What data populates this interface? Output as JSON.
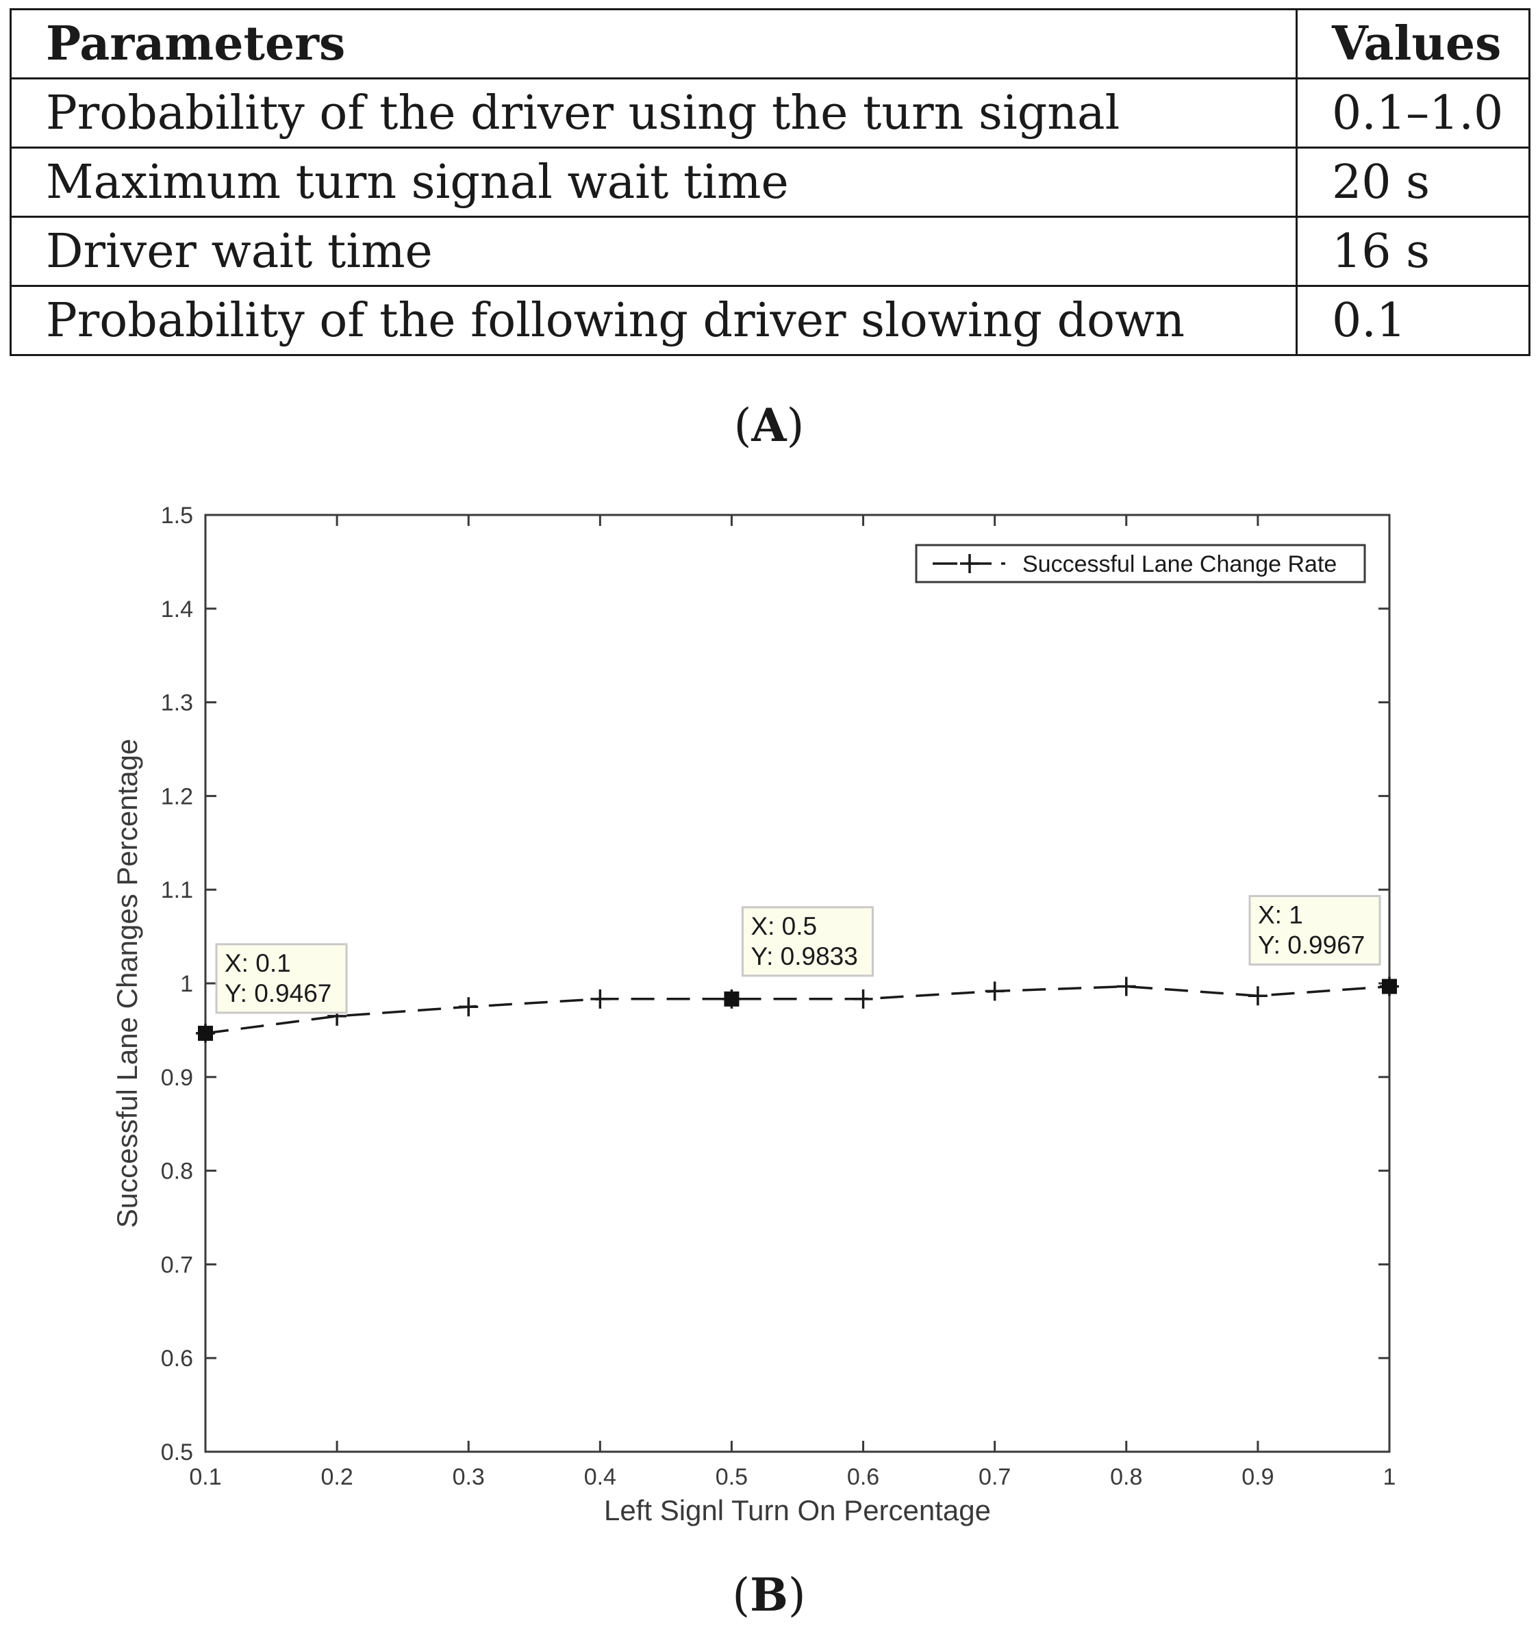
{
  "table": {
    "headers": [
      "Parameters",
      "Values"
    ],
    "rows": [
      [
        "Probability of the driver using the turn signal",
        "0.1–1.0"
      ],
      [
        "Maximum turn signal wait time",
        "20 s"
      ],
      [
        "Driver wait time",
        "16 s"
      ],
      [
        "Probability of the following driver slowing down",
        "0.1"
      ]
    ]
  },
  "panel_labels": {
    "a": {
      "open": "(",
      "letter": "A",
      "close": ")"
    },
    "b": {
      "open": "(",
      "letter": "B",
      "close": ")"
    }
  },
  "chart_data": {
    "type": "line",
    "xlabel": "Left Signl Turn On Percentage",
    "ylabel": "Successful Lane Changes Percentage",
    "xlim": [
      0.1,
      1.0
    ],
    "ylim": [
      0.5,
      1.5
    ],
    "xticks": [
      "0.1",
      "0.2",
      "0.3",
      "0.4",
      "0.5",
      "0.6",
      "0.7",
      "0.8",
      "0.9",
      "1"
    ],
    "yticks": [
      "0.5",
      "0.6",
      "0.7",
      "0.8",
      "0.9",
      "1",
      "1.1",
      "1.2",
      "1.3",
      "1.4",
      "1.5"
    ],
    "grid": false,
    "legend_position": "top-right",
    "series": [
      {
        "name": "Successful Lane Change Rate",
        "line_style": "dashed",
        "marker": "plus",
        "color": "#1a1a1a",
        "x": [
          0.1,
          0.2,
          0.3,
          0.4,
          0.5,
          0.6,
          0.7,
          0.8,
          0.9,
          1.0
        ],
        "y": [
          0.9467,
          0.965,
          0.975,
          0.9833,
          0.9833,
          0.9833,
          0.9917,
          0.9967,
          0.9867,
          0.9967
        ]
      }
    ],
    "datatips": [
      {
        "x": 0.1,
        "y": 0.9467,
        "x_text": "X: 0.1",
        "y_text": "Y: 0.9467"
      },
      {
        "x": 0.5,
        "y": 0.9833,
        "x_text": "X: 0.5",
        "y_text": "Y: 0.9833"
      },
      {
        "x": 1.0,
        "y": 0.9967,
        "x_text": "X: 1",
        "y_text": "Y: 0.9967"
      }
    ]
  }
}
